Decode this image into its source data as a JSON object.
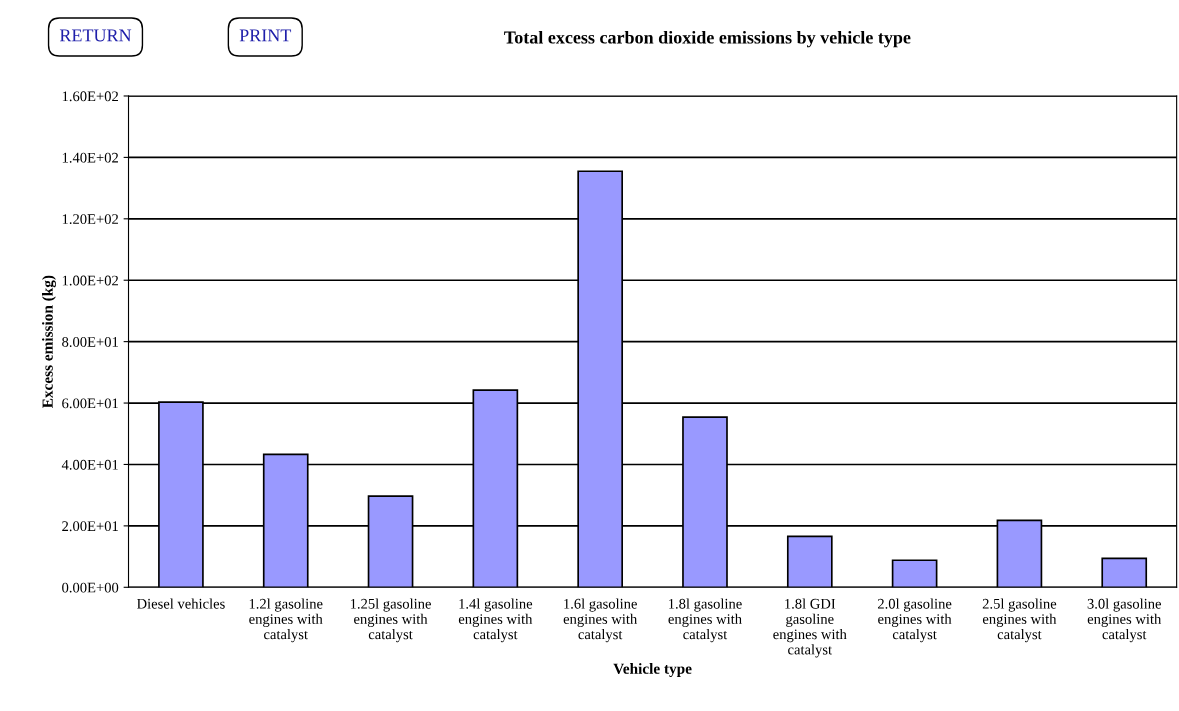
{
  "chart_data": {
    "type": "bar",
    "title": "Total excess carbon dioxide emissions by vehicle type",
    "xlabel": "Vehicle type",
    "ylabel": "Excess emission (kg)",
    "annotations": [
      "RETURN",
      "PRINT"
    ],
    "categories": [
      "Diesel vehicles",
      "1.2l gasoline engines with catalyst",
      "1.25l gasoline engines with catalyst",
      "1.4l gasoline engines with catalyst",
      "1.6l gasoline engines with catalyst",
      "1.8l gasoline engines with catalyst",
      "1.8l GDI gasoline engines with catalyst",
      "2.0l gasoline engines with catalyst",
      "2.5l gasoline engines with catalyst",
      "3.0l gasoline engines with catalyst"
    ],
    "values": [
      60.3,
      43.3,
      29.7,
      64.2,
      135.5,
      55.4,
      16.6,
      8.8,
      21.8,
      9.4
    ],
    "color": "#9999ff",
    "ylim": [
      0,
      160
    ],
    "yticks": [
      {
        "value": 0,
        "label": "0.00E+00"
      },
      {
        "value": 20,
        "label": "2.00E+01"
      },
      {
        "value": 40,
        "label": "4.00E+01"
      },
      {
        "value": 60,
        "label": "6.00E+01"
      },
      {
        "value": 80,
        "label": "8.00E+01"
      },
      {
        "value": 100,
        "label": "1.00E+02"
      },
      {
        "value": 120,
        "label": "1.20E+02"
      },
      {
        "value": 140,
        "label": "1.40E+02"
      },
      {
        "value": 160,
        "label": "1.60E+02"
      }
    ],
    "grid": "y",
    "legend": false
  }
}
